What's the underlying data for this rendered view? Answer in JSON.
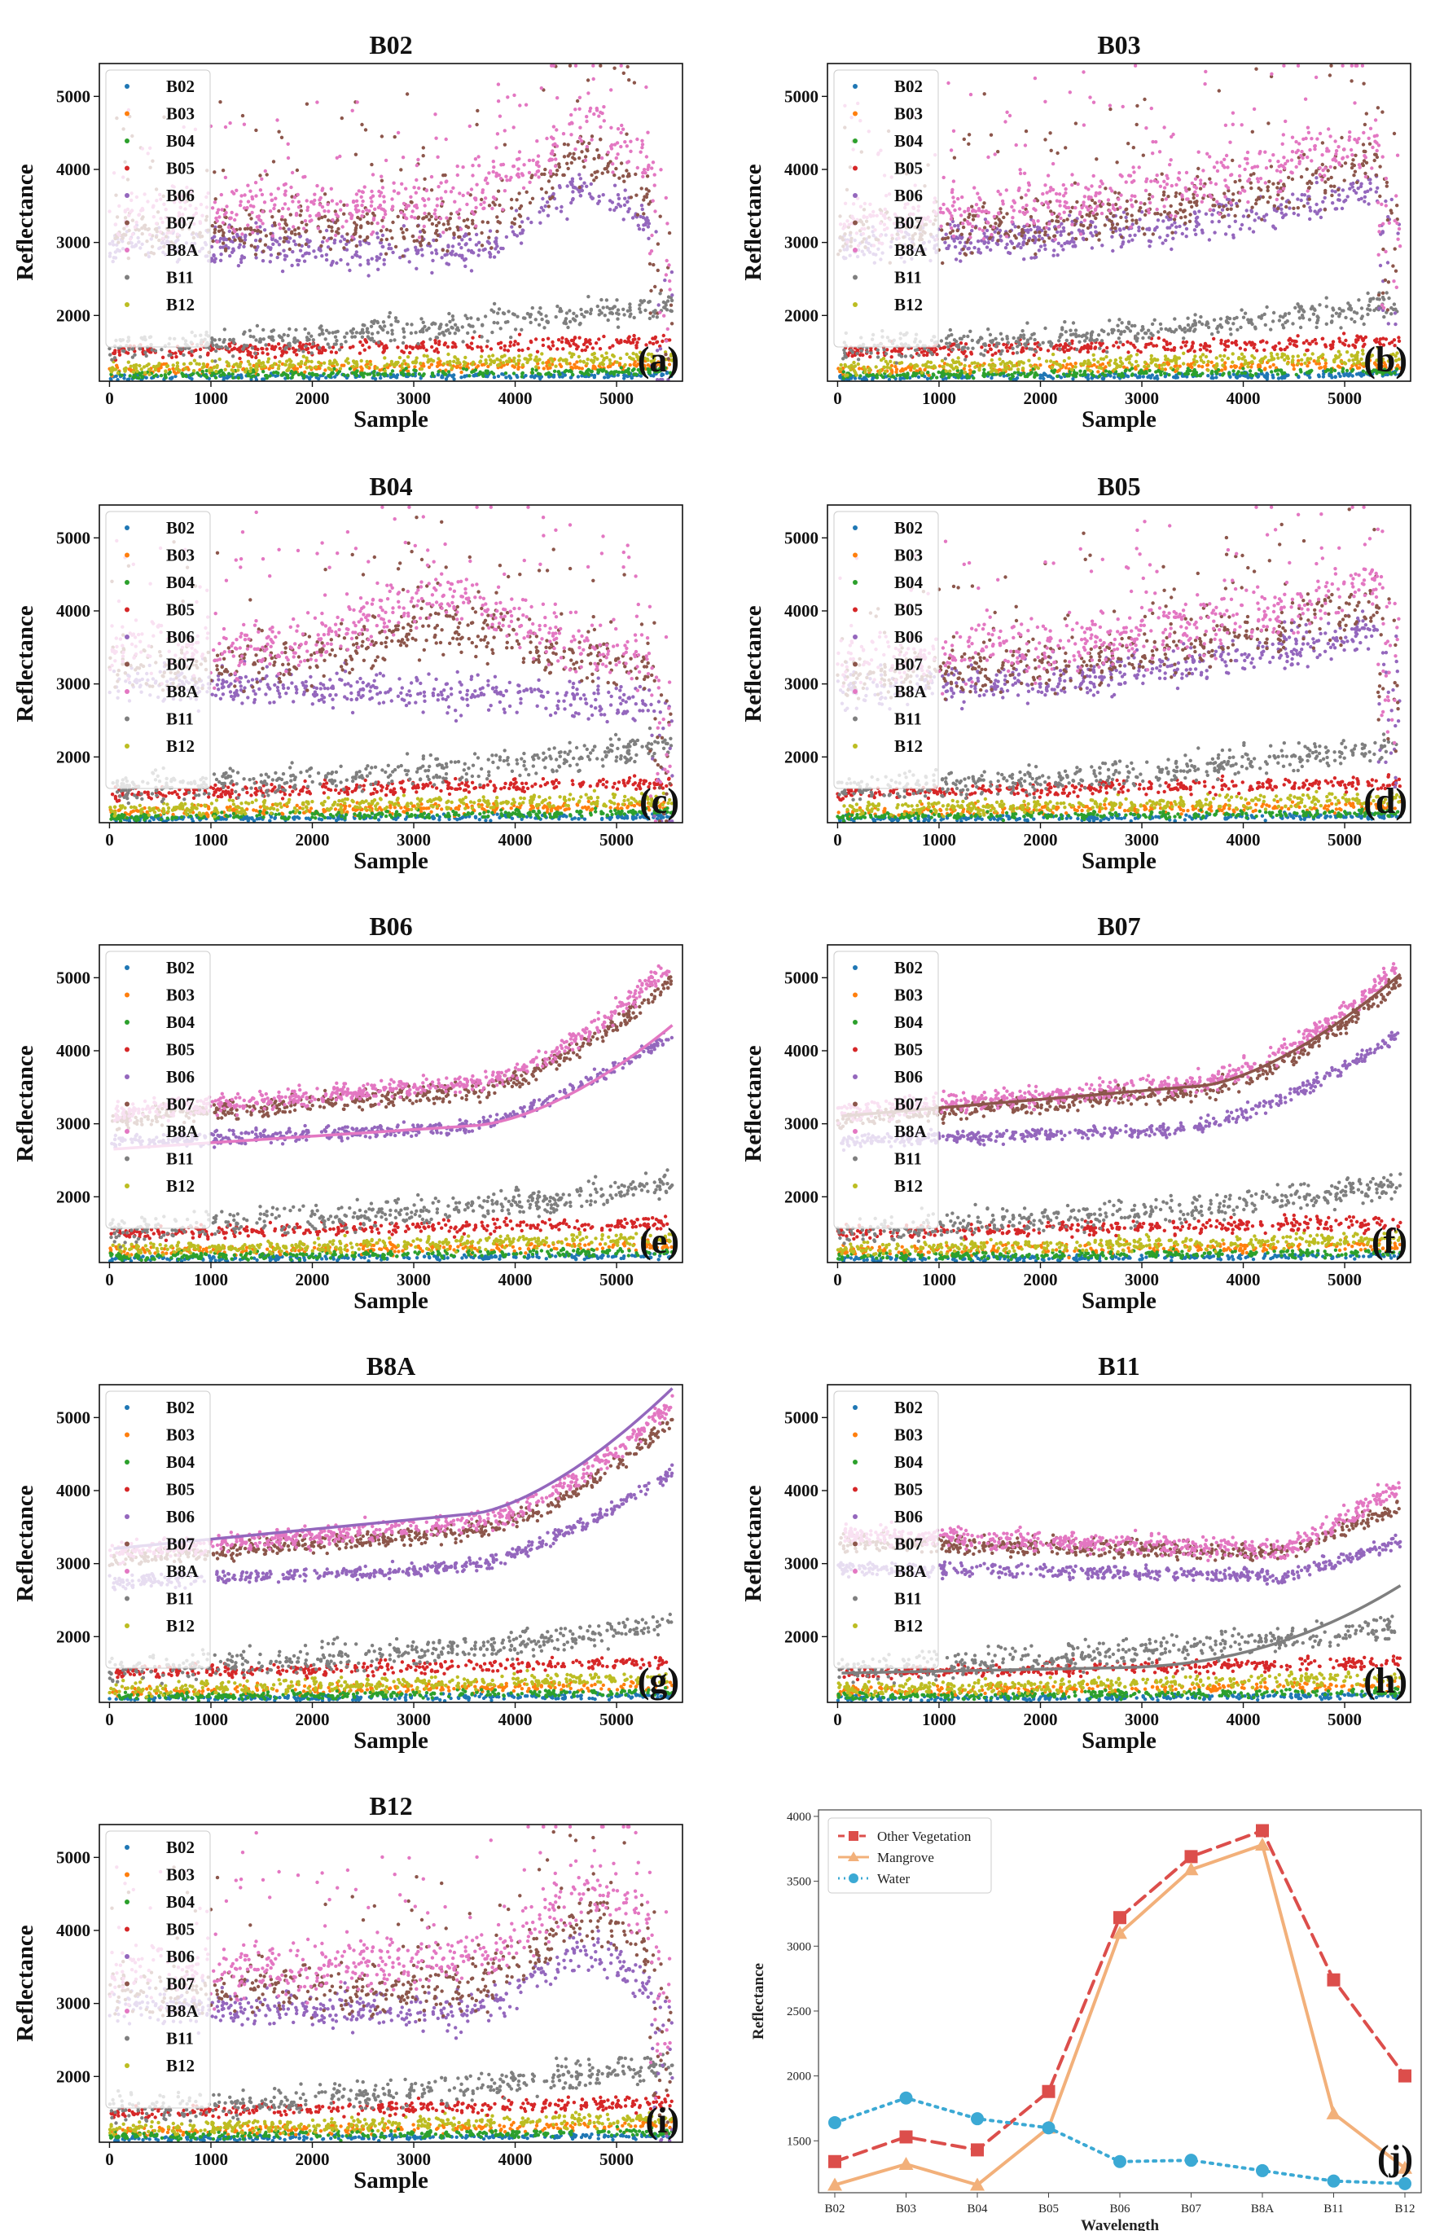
{
  "chart_data": [
    {
      "id": "a",
      "type": "scatter",
      "title": "B02",
      "panel_label": "(a)",
      "xlabel": "Sample",
      "ylabel": "Reflectance",
      "xlim": [
        -100,
        5650
      ],
      "ylim": [
        1100,
        5450
      ],
      "xticks": [
        0,
        1000,
        2000,
        3000,
        4000,
        5000
      ],
      "yticks": [
        2000,
        3000,
        4000,
        5000
      ],
      "legend": [
        "B02",
        "B03",
        "B04",
        "B05",
        "B06",
        "B07",
        "B8A",
        "B11",
        "B12"
      ],
      "legend_position": "upper-left",
      "pattern": "noisy_peak_end"
    },
    {
      "id": "b",
      "type": "scatter",
      "title": "B03",
      "panel_label": "(b)",
      "xlabel": "Sample",
      "ylabel": "Reflectance",
      "xlim": [
        -100,
        5650
      ],
      "ylim": [
        1100,
        5450
      ],
      "xticks": [
        0,
        1000,
        2000,
        3000,
        4000,
        5000
      ],
      "yticks": [
        2000,
        3000,
        4000,
        5000
      ],
      "legend": [
        "B02",
        "B03",
        "B04",
        "B05",
        "B06",
        "B07",
        "B8A",
        "B11",
        "B12"
      ],
      "legend_position": "upper-left",
      "pattern": "noisy_rising"
    },
    {
      "id": "c",
      "type": "scatter",
      "title": "B04",
      "panel_label": "(c)",
      "xlabel": "Sample",
      "ylabel": "Reflectance",
      "xlim": [
        -100,
        5650
      ],
      "ylim": [
        1100,
        5450
      ],
      "xticks": [
        0,
        1000,
        2000,
        3000,
        4000,
        5000
      ],
      "yticks": [
        2000,
        3000,
        4000,
        5000
      ],
      "legend": [
        "B02",
        "B03",
        "B04",
        "B05",
        "B06",
        "B07",
        "B8A",
        "B11",
        "B12"
      ],
      "legend_position": "upper-left",
      "pattern": "noisy_peak_mid"
    },
    {
      "id": "d",
      "type": "scatter",
      "title": "B05",
      "panel_label": "(d)",
      "xlabel": "Sample",
      "ylabel": "Reflectance",
      "xlim": [
        -100,
        5650
      ],
      "ylim": [
        1100,
        5450
      ],
      "xticks": [
        0,
        1000,
        2000,
        3000,
        4000,
        5000
      ],
      "yticks": [
        2000,
        3000,
        4000,
        5000
      ],
      "legend": [
        "B02",
        "B03",
        "B04",
        "B05",
        "B06",
        "B07",
        "B8A",
        "B11",
        "B12"
      ],
      "legend_position": "upper-left",
      "pattern": "noisy_rising"
    },
    {
      "id": "e",
      "type": "scatter",
      "title": "B06",
      "panel_label": "(e)",
      "xlabel": "Sample",
      "ylabel": "Reflectance",
      "xlim": [
        -100,
        5650
      ],
      "ylim": [
        1100,
        5450
      ],
      "xticks": [
        0,
        1000,
        2000,
        3000,
        4000,
        5000
      ],
      "yticks": [
        2000,
        3000,
        4000,
        5000
      ],
      "legend": [
        "B02",
        "B03",
        "B04",
        "B05",
        "B06",
        "B07",
        "B8A",
        "B11",
        "B12"
      ],
      "legend_position": "upper-left",
      "pattern": "sorted",
      "sorted_band": "B8A"
    },
    {
      "id": "f",
      "type": "scatter",
      "title": "B07",
      "panel_label": "(f)",
      "xlabel": "Sample",
      "ylabel": "Reflectance",
      "xlim": [
        -100,
        5650
      ],
      "ylim": [
        1100,
        5450
      ],
      "xticks": [
        0,
        1000,
        2000,
        3000,
        4000,
        5000
      ],
      "yticks": [
        2000,
        3000,
        4000,
        5000
      ],
      "legend": [
        "B02",
        "B03",
        "B04",
        "B05",
        "B06",
        "B07",
        "B8A",
        "B11",
        "B12"
      ],
      "legend_position": "upper-left",
      "pattern": "sorted",
      "sorted_band": "B07"
    },
    {
      "id": "g",
      "type": "scatter",
      "title": "B8A",
      "panel_label": "(g)",
      "xlabel": "Sample",
      "ylabel": "Reflectance",
      "xlim": [
        -100,
        5650
      ],
      "ylim": [
        1100,
        5450
      ],
      "xticks": [
        0,
        1000,
        2000,
        3000,
        4000,
        5000
      ],
      "yticks": [
        2000,
        3000,
        4000,
        5000
      ],
      "legend": [
        "B02",
        "B03",
        "B04",
        "B05",
        "B06",
        "B07",
        "B8A",
        "B11",
        "B12"
      ],
      "legend_position": "upper-left",
      "pattern": "sorted",
      "sorted_band": "B06"
    },
    {
      "id": "h",
      "type": "scatter",
      "title": "B11",
      "panel_label": "(h)",
      "xlabel": "Sample",
      "ylabel": "Reflectance",
      "xlim": [
        -100,
        5650
      ],
      "ylim": [
        1100,
        5450
      ],
      "xticks": [
        0,
        1000,
        2000,
        3000,
        4000,
        5000
      ],
      "yticks": [
        2000,
        3000,
        4000,
        5000
      ],
      "legend": [
        "B02",
        "B03",
        "B04",
        "B05",
        "B06",
        "B07",
        "B8A",
        "B11",
        "B12"
      ],
      "legend_position": "upper-left",
      "pattern": "sorted_swir",
      "sorted_band": "B11"
    },
    {
      "id": "i",
      "type": "scatter",
      "title": "B12",
      "panel_label": "(i)",
      "xlabel": "Sample",
      "ylabel": "Reflectance",
      "xlim": [
        -100,
        5650
      ],
      "ylim": [
        1100,
        5450
      ],
      "xticks": [
        0,
        1000,
        2000,
        3000,
        4000,
        5000
      ],
      "yticks": [
        2000,
        3000,
        4000,
        5000
      ],
      "legend": [
        "B02",
        "B03",
        "B04",
        "B05",
        "B06",
        "B07",
        "B8A",
        "B11",
        "B12"
      ],
      "legend_position": "upper-left",
      "pattern": "noisy_peak_end"
    },
    {
      "id": "j",
      "type": "line",
      "panel_label": "(j)",
      "xlabel": "Wavelength",
      "ylabel": "Reflectance",
      "categories": [
        "B02",
        "B03",
        "B04",
        "B05",
        "B06",
        "B07",
        "B8A",
        "B11",
        "B12"
      ],
      "ylim": [
        1100,
        4050
      ],
      "yticks": [
        1500,
        2000,
        2500,
        3000,
        3500,
        4000
      ],
      "legend_position": "upper-left",
      "series": [
        {
          "name": "Other Vegetation",
          "values": [
            1340,
            1530,
            1430,
            1880,
            3220,
            3690,
            3890,
            2740,
            2000
          ],
          "color": "#dc4e4b",
          "marker": "square",
          "style": "dashed"
        },
        {
          "name": "Mangrove",
          "values": [
            1160,
            1320,
            1160,
            1600,
            3100,
            3590,
            3780,
            1710,
            1290
          ],
          "color": "#f2b07a",
          "marker": "triangle",
          "style": "solid"
        },
        {
          "name": "Water",
          "values": [
            1640,
            1830,
            1670,
            1600,
            1340,
            1350,
            1270,
            1190,
            1170
          ],
          "color": "#3ba9d4",
          "marker": "circle",
          "style": "dotted"
        }
      ]
    }
  ],
  "band_colors": {
    "B02": "#1f77b4",
    "B03": "#ff7f0e",
    "B04": "#2ca02c",
    "B05": "#d62728",
    "B06": "#9467bd",
    "B07": "#8c564b",
    "B8A": "#e377c2",
    "B11": "#7f7f7f",
    "B12": "#bcbd22"
  }
}
